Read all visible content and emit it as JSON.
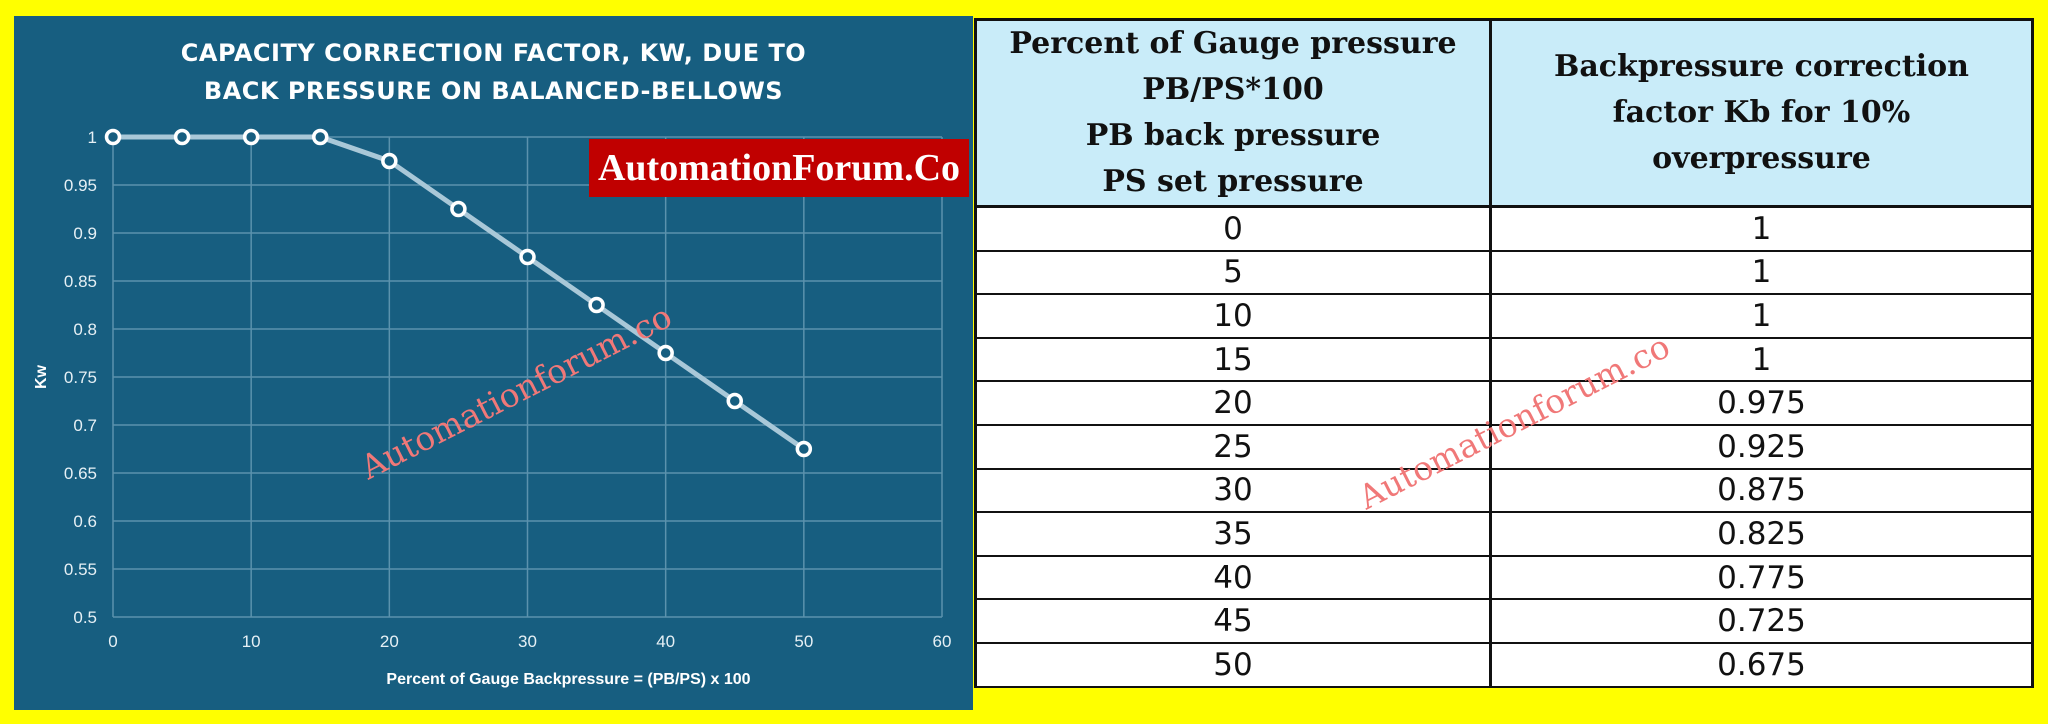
{
  "chart": {
    "title_lines": [
      "CAPACITY CORRECTION FACTOR, KW, DUE TO",
      "BACK PRESSURE ON BALANCED-BELLOWS"
    ],
    "badge": "AutomationForum.Co",
    "watermark": "Automationforum.co"
  },
  "chart_data": {
    "type": "line",
    "title": "CAPACITY CORRECTION FACTOR, KW, DUE TO BACK PRESSURE ON BALANCED-BELLOWS",
    "xlabel": "Percent of Gauge Backpressure = (PB/PS) x 100",
    "ylabel": "Kw",
    "x": [
      0,
      5,
      10,
      15,
      20,
      25,
      30,
      35,
      40,
      45,
      50
    ],
    "series": [
      {
        "name": "Kw",
        "values": [
          1,
          1,
          1,
          1,
          0.975,
          0.925,
          0.875,
          0.825,
          0.775,
          0.725,
          0.675
        ]
      }
    ],
    "xlim": [
      0,
      60
    ],
    "ylim": [
      0.5,
      1
    ],
    "xticks": [
      "0",
      "10",
      "20",
      "30",
      "40",
      "50",
      "60"
    ],
    "yticks": [
      "0.5",
      "0.55",
      "0.6",
      "0.65",
      "0.7",
      "0.75",
      "0.8",
      "0.85",
      "0.9",
      "0.95",
      "1"
    ],
    "grid": true,
    "legend": "none",
    "colors": {
      "background": "#175e80",
      "line": "#a9c8d8",
      "marker_fill": "#175e80",
      "marker_stroke": "#ffffff",
      "grid": "#5b92ad"
    }
  },
  "table": {
    "headers": [
      [
        "Percent of Gauge pressure",
        "PB/PS*100",
        "PB back pressure",
        "PS set pressure"
      ],
      [
        "Backpressure correction",
        "factor Kb for 10%",
        "overpressure"
      ]
    ],
    "rows": [
      [
        "0",
        "1"
      ],
      [
        "5",
        "1"
      ],
      [
        "10",
        "1"
      ],
      [
        "15",
        "1"
      ],
      [
        "20",
        "0.975"
      ],
      [
        "25",
        "0.925"
      ],
      [
        "30",
        "0.875"
      ],
      [
        "35",
        "0.825"
      ],
      [
        "40",
        "0.775"
      ],
      [
        "45",
        "0.725"
      ],
      [
        "50",
        "0.675"
      ]
    ],
    "watermark": "Automationforum.co"
  }
}
